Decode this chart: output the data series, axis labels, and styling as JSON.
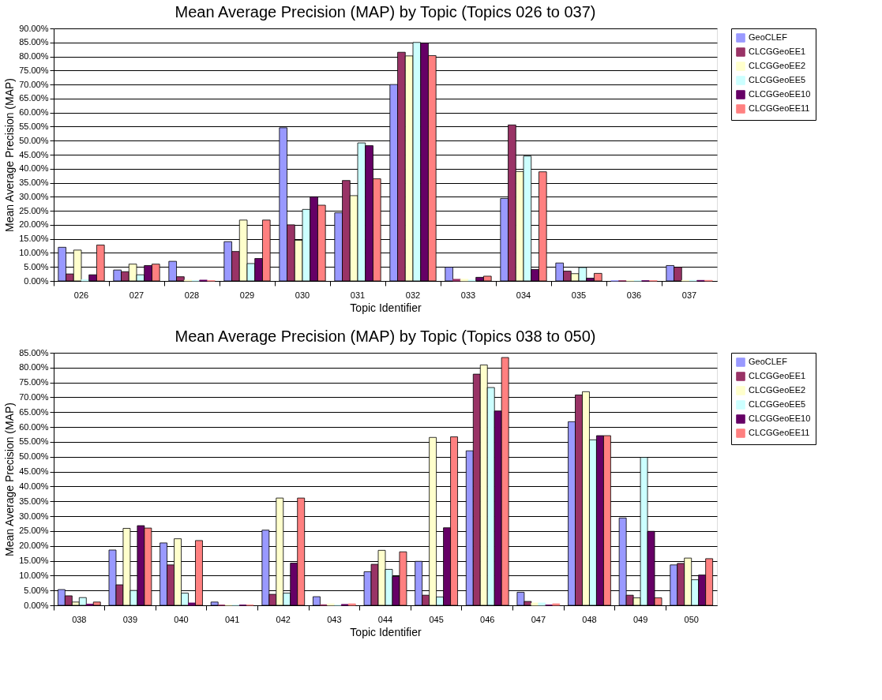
{
  "chart_data": [
    {
      "type": "bar",
      "title": "Mean Average Precision (MAP) by Topic (Topics 026 to 037)",
      "xlabel": "Topic Identifier",
      "ylabel": "Mean Average Precision (MAP)",
      "categories": [
        "026",
        "027",
        "028",
        "029",
        "030",
        "031",
        "032",
        "033",
        "034",
        "035",
        "036",
        "037"
      ],
      "series": [
        {
          "name": "GeoCLEF",
          "color": "#9999ff",
          "values": [
            12,
            3.9,
            7,
            14,
            54.6,
            24.3,
            70,
            4.9,
            29.4,
            6.4,
            0.1,
            5.5
          ]
        },
        {
          "name": "CLCGGeoEE1",
          "color": "#993366",
          "values": [
            2.5,
            3.3,
            1.5,
            10.5,
            20,
            35.8,
            81.5,
            0.6,
            55.6,
            3.5,
            0.1,
            4.9
          ]
        },
        {
          "name": "CLCGGeoEE2",
          "color": "#ffffcc",
          "values": [
            11,
            6,
            0.3,
            21.7,
            14.5,
            30.4,
            80.2,
            0.6,
            39,
            2.6,
            0.1,
            0.2
          ]
        },
        {
          "name": "CLCGGeoEE5",
          "color": "#ccffff",
          "values": [
            0.5,
            2.2,
            0.1,
            6.2,
            25.5,
            49.2,
            85,
            0.3,
            44.5,
            4.8,
            0.1,
            0.2
          ]
        },
        {
          "name": "CLCGGeoEE10",
          "color": "#660066",
          "values": [
            2.2,
            5.5,
            0.3,
            8,
            30,
            48.2,
            84.8,
            1.3,
            4.1,
            1,
            0.1,
            0.2
          ]
        },
        {
          "name": "CLCGGeoEE11",
          "color": "#ff8080",
          "values": [
            12.8,
            6,
            0.1,
            21.7,
            27,
            36.4,
            80.3,
            1.7,
            38.9,
            2.7,
            0.1,
            0.2
          ]
        }
      ],
      "ylim": [
        0,
        90
      ],
      "yticks": [
        {
          "value": 0,
          "label": "0.00%"
        },
        {
          "value": 5,
          "label": "5.00%"
        },
        {
          "value": 10,
          "label": "10.00%"
        },
        {
          "value": 15,
          "label": "15.00%"
        },
        {
          "value": 20,
          "label": "20.00%"
        },
        {
          "value": 25,
          "label": "25.00%"
        },
        {
          "value": 30,
          "label": "30.00%"
        },
        {
          "value": 35,
          "label": "35.00%"
        },
        {
          "value": 40,
          "label": "40.00%"
        },
        {
          "value": 45,
          "label": "45.00%"
        },
        {
          "value": 50,
          "label": "50.00%"
        },
        {
          "value": 55,
          "label": "55.00%"
        },
        {
          "value": 60,
          "label": "60.00%"
        },
        {
          "value": 65,
          "label": "65.00%"
        },
        {
          "value": 70,
          "label": "70.00%"
        },
        {
          "value": 75,
          "label": "75.00%"
        },
        {
          "value": 80,
          "label": "80.00%"
        },
        {
          "value": 85,
          "label": "85.00%"
        },
        {
          "value": 90,
          "label": "90.00%"
        }
      ],
      "grid": "y",
      "legend": "right"
    },
    {
      "type": "bar",
      "title": "Mean Average Precision (MAP) by Topic (Topics 038 to 050)",
      "xlabel": "Topic Identifier",
      "ylabel": "Mean Average Precision (MAP)",
      "categories": [
        "038",
        "039",
        "040",
        "041",
        "042",
        "043",
        "044",
        "045",
        "046",
        "047",
        "048",
        "049",
        "050"
      ],
      "series": [
        {
          "name": "GeoCLEF",
          "color": "#9999ff",
          "values": [
            5.3,
            18.6,
            21,
            1.1,
            25.3,
            2.9,
            11.3,
            14.8,
            52,
            4.4,
            61.8,
            29.4,
            13.6
          ]
        },
        {
          "name": "CLCGGeoEE1",
          "color": "#993366",
          "values": [
            3.2,
            6.9,
            13.6,
            0.1,
            3.7,
            0.2,
            13.8,
            3.4,
            77.8,
            1.3,
            70.8,
            3.4,
            14.1
          ]
        },
        {
          "name": "CLCGGeoEE2",
          "color": "#ffffcc",
          "values": [
            1.1,
            25.9,
            22.4,
            0.1,
            36.1,
            0.5,
            18.5,
            56.5,
            80.9,
            0.8,
            71.9,
            2.5,
            15.9
          ]
        },
        {
          "name": "CLCGGeoEE5",
          "color": "#ccffff",
          "values": [
            2.6,
            5,
            4.1,
            0.1,
            4.1,
            0.1,
            12.1,
            2.8,
            73.3,
            0.8,
            55.7,
            49.8,
            8.6
          ]
        },
        {
          "name": "CLCGGeoEE10",
          "color": "#660066",
          "values": [
            0.4,
            26.8,
            0.8,
            0.1,
            14.2,
            0.3,
            9.7,
            26.1,
            65.4,
            0.1,
            57.1,
            24.9,
            10.2
          ]
        },
        {
          "name": "CLCGGeoEE11",
          "color": "#ff8080",
          "values": [
            1.1,
            26,
            21.8,
            0.1,
            36.1,
            0.5,
            18,
            56.7,
            83.4,
            0.5,
            57.1,
            2.5,
            15.7
          ]
        }
      ],
      "ylim": [
        0,
        85
      ],
      "yticks": [
        {
          "value": 0,
          "label": "0.00%"
        },
        {
          "value": 5,
          "label": "5.00%"
        },
        {
          "value": 10,
          "label": "10.00%"
        },
        {
          "value": 15,
          "label": "15.00%"
        },
        {
          "value": 20,
          "label": "20.00%"
        },
        {
          "value": 25,
          "label": "25.00%"
        },
        {
          "value": 30,
          "label": "30.00%"
        },
        {
          "value": 35,
          "label": "35.00%"
        },
        {
          "value": 40,
          "label": "40.00%"
        },
        {
          "value": 45,
          "label": "45.00%"
        },
        {
          "value": 50,
          "label": "50.00%"
        },
        {
          "value": 55,
          "label": "55.00%"
        },
        {
          "value": 60,
          "label": "60.00%"
        },
        {
          "value": 65,
          "label": "65.00%"
        },
        {
          "value": 70,
          "label": "70.00%"
        },
        {
          "value": 75,
          "label": "75.00%"
        },
        {
          "value": 80,
          "label": "80.00%"
        },
        {
          "value": 85,
          "label": "85.00%"
        }
      ],
      "grid": "y",
      "legend": "right"
    }
  ]
}
